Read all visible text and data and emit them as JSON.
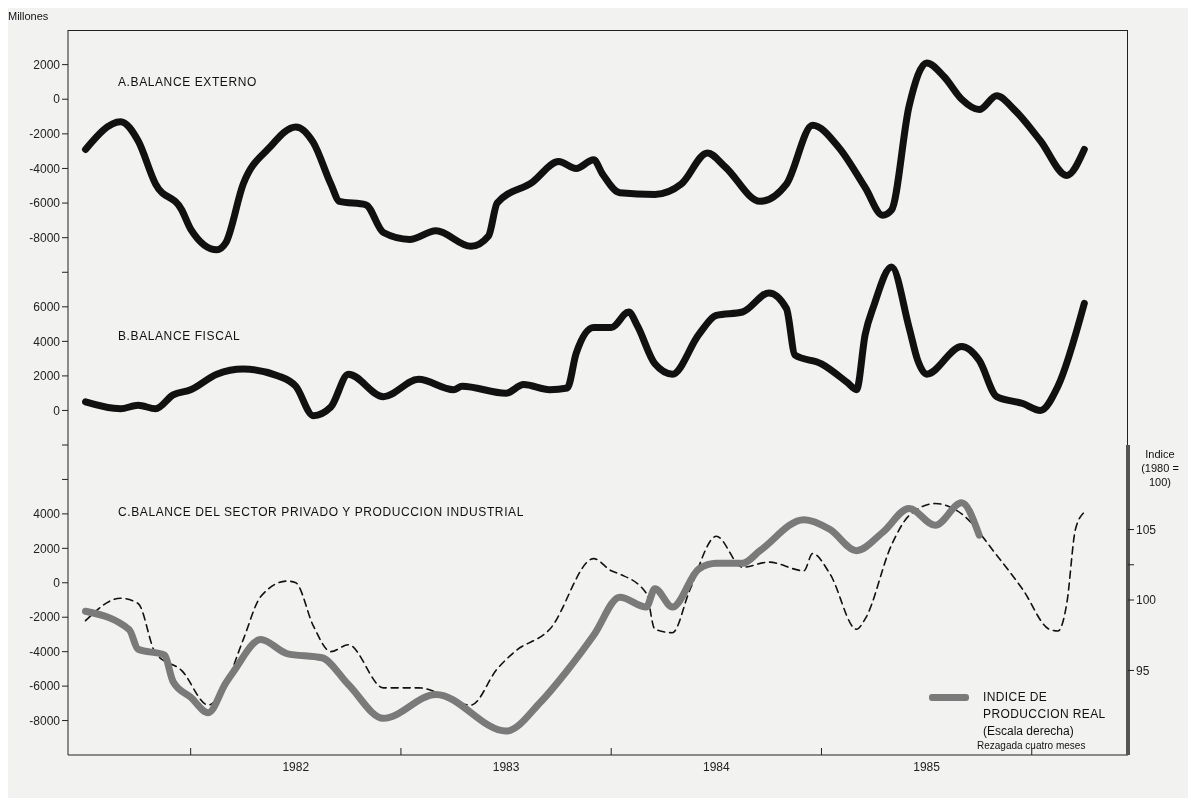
{
  "chart_data": [
    {
      "type": "line",
      "title": "A.BALANCE EXTERNO",
      "ylabel": "Millones",
      "tick_labels": "y",
      "xlim": [
        "1981-06-01",
        "1986-06-16"
      ],
      "ylim": [
        -9000,
        4000
      ],
      "yticks": [
        -8000,
        -6000,
        -4000,
        -2000,
        0,
        2000
      ],
      "series": [
        {
          "color": "#111111",
          "x": [
            "1981-07-01",
            "1981-09-01",
            "1981-10-01",
            "1981-11-01",
            "1981-12-16",
            "1982-01-01",
            "1982-02-16",
            "1982-03-01",
            "1982-04-01",
            "1982-05-16",
            "1982-07-01",
            "1982-08-01",
            "1982-09-01",
            "1982-09-16",
            "1982-11-01",
            "1982-12-01",
            "1983-01-16",
            "1983-03-01",
            "1983-05-01",
            "1983-06-01",
            "1983-06-16",
            "1983-08-16",
            "1983-10-01",
            "1983-11-01",
            "1983-12-01",
            "1983-12-16",
            "1984-01-16",
            "1984-03-16",
            "1984-05-01",
            "1984-06-16",
            "1984-07-16",
            "1984-09-16",
            "1984-11-01",
            "1984-12-16",
            "1985-02-01",
            "1985-03-16",
            "1985-04-16",
            "1985-05-01",
            "1985-06-01",
            "1985-07-01",
            "1985-08-01",
            "1985-09-01",
            "1985-10-01",
            "1985-11-01",
            "1985-12-01",
            "1986-01-16",
            "1986-03-01",
            "1986-04-01"
          ],
          "values": [
            -2900,
            -1300,
            -2400,
            -4900,
            -6400,
            -7500,
            -8700,
            -8300,
            -4900,
            -2800,
            -1600,
            -2500,
            -4900,
            -5900,
            -6100,
            -7700,
            -8100,
            -7600,
            -8500,
            -7900,
            -6000,
            -4800,
            -3600,
            -4000,
            -3500,
            -4300,
            -5400,
            -5500,
            -4900,
            -3100,
            -3900,
            -5900,
            -4900,
            -1500,
            -2800,
            -5100,
            -6700,
            -6400,
            -400,
            2100,
            1300,
            0,
            -600,
            200,
            -600,
            -2400,
            -4400,
            -2900
          ]
        }
      ]
    },
    {
      "type": "line",
      "title": "B.BALANCE FISCAL",
      "tick_labels": "y",
      "xlim": [
        "1981-06-01",
        "1986-06-16"
      ],
      "ylim": [
        -2000,
        9000
      ],
      "yticks": [
        {
          "value": -2000,
          "label": null
        },
        0,
        2000,
        4000,
        6000,
        {
          "value": 8000,
          "label": null
        }
      ],
      "series": [
        {
          "color": "#111111",
          "x": [
            "1981-07-01",
            "1981-09-01",
            "1981-10-01",
            "1981-11-01",
            "1981-12-01",
            "1982-01-01",
            "1982-02-16",
            "1982-04-01",
            "1982-06-01",
            "1982-07-01",
            "1982-08-01",
            "1982-09-01",
            "1982-10-01",
            "1982-12-01",
            "1983-02-01",
            "1983-04-01",
            "1983-04-16",
            "1983-07-01",
            "1983-08-01",
            "1983-09-16",
            "1983-10-16",
            "1983-11-01",
            "1983-12-01",
            "1984-01-01",
            "1984-02-01",
            "1984-02-16",
            "1984-03-16",
            "1984-04-16",
            "1984-06-01",
            "1984-07-01",
            "1984-08-16",
            "1984-10-01",
            "1984-11-01",
            "1984-11-16",
            "1985-01-01",
            "1985-02-16",
            "1985-03-01",
            "1985-03-16",
            "1985-04-01",
            "1985-05-01",
            "1985-06-01",
            "1985-06-16",
            "1985-07-01",
            "1985-09-01",
            "1985-10-01",
            "1985-11-01",
            "1985-12-16",
            "1986-01-16",
            "1986-02-16",
            "1986-04-01"
          ],
          "values": [
            500,
            100,
            300,
            100,
            900,
            1200,
            2100,
            2400,
            2000,
            1400,
            -300,
            200,
            2100,
            800,
            1800,
            1200,
            1400,
            1000,
            1500,
            1200,
            1300,
            3300,
            4800,
            4800,
            5700,
            4900,
            2700,
            2100,
            4400,
            5500,
            5700,
            6800,
            5900,
            3200,
            2700,
            1600,
            1200,
            4400,
            6100,
            8300,
            4800,
            2900,
            2100,
            3700,
            2900,
            800,
            400,
            0,
            1400,
            6200
          ]
        }
      ]
    },
    {
      "type": "line",
      "title": "C.BALANCE DEL SECTOR PRIVADO Y PRODUCCION INDUSTRIAL",
      "y2label": "Indice (1980 = 100)",
      "legend": "bottom right",
      "annotations": [
        "(Escala derecha)",
        "Rezagada cuatro meses"
      ],
      "xlim": [
        "1981-06-01",
        "1986-06-16"
      ],
      "xticks": [
        {
          "value": "1982-01-01",
          "label": null
        },
        {
          "value": "1982-07-01",
          "label": "1982"
        },
        {
          "value": "1983-01-01",
          "label": null
        },
        {
          "value": "1983-07-01",
          "label": "1983"
        },
        {
          "value": "1984-01-01",
          "label": null
        },
        {
          "value": "1984-07-01",
          "label": "1984"
        },
        {
          "value": "1985-01-01",
          "label": null
        },
        {
          "value": "1985-07-01",
          "label": "1985"
        },
        {
          "value": "1986-01-01",
          "label": null
        }
      ],
      "ylim": [
        -10000,
        8000
      ],
      "yticks": [
        -8000,
        -6000,
        -4000,
        -2000,
        0,
        2000,
        4000,
        {
          "value": 6000,
          "label": null
        },
        {
          "value": 8000,
          "label": null
        }
      ],
      "y2lim": [
        89,
        111
      ],
      "y2ticks": [
        95,
        100,
        {
          "value": 102.5,
          "label": null
        },
        105
      ],
      "series": [
        {
          "color": "#111111",
          "line_style": "dashed",
          "x": [
            "1981-07-01",
            "1981-09-01",
            "1981-10-01",
            "1981-11-01",
            "1981-12-16",
            "1982-02-01",
            "1982-03-01",
            "1982-04-01",
            "1982-05-01",
            "1982-06-16",
            "1982-07-01",
            "1982-08-01",
            "1982-09-01",
            "1982-10-01",
            "1982-12-01",
            "1983-02-01",
            "1983-05-01",
            "1983-06-16",
            "1983-07-16",
            "1983-09-16",
            "1983-12-01",
            "1984-01-01",
            "1984-01-16",
            "1984-03-01",
            "1984-03-16",
            "1984-04-16",
            "1984-05-16",
            "1984-07-01",
            "1984-08-16",
            "1984-10-01",
            "1984-12-01",
            "1984-12-16",
            "1985-01-16",
            "1985-03-01",
            "1985-03-16",
            "1985-05-01",
            "1985-06-01",
            "1985-07-16",
            "1985-09-01",
            "1985-11-01",
            "1985-12-16",
            "1986-02-01",
            "1986-02-16",
            "1986-03-01",
            "1986-03-16",
            "1986-04-01"
          ],
          "values": [
            -2200,
            -900,
            -1200,
            -4100,
            -5100,
            -7100,
            -5900,
            -3300,
            -800,
            100,
            0,
            -2500,
            -4000,
            -3600,
            -6100,
            -6100,
            -7100,
            -5000,
            -4000,
            -2700,
            1400,
            700,
            500,
            -600,
            -2700,
            -2900,
            -400,
            2700,
            900,
            1200,
            700,
            1700,
            500,
            -2700,
            -2100,
            2200,
            3900,
            4600,
            4000,
            1600,
            -400,
            -2700,
            -2800,
            -1200,
            3100,
            4100
          ]
        },
        {
          "name": "INDICE DE PRODUCCION REAL",
          "axis": "y2",
          "color": "#7a7a7a",
          "x": [
            "1981-07-01",
            "1981-09-16",
            "1981-10-01",
            "1981-11-16",
            "1981-12-01",
            "1982-01-01",
            "1982-02-01",
            "1982-03-01",
            "1982-03-16",
            "1982-05-01",
            "1982-06-16",
            "1982-08-16",
            "1982-10-01",
            "1982-12-01",
            "1983-03-01",
            "1983-07-01",
            "1983-09-01",
            "1983-10-16",
            "1983-12-01",
            "1984-01-16",
            "1984-03-01",
            "1984-03-16",
            "1984-04-16",
            "1984-06-01",
            "1984-07-01",
            "1984-08-16",
            "1984-09-16",
            "1984-12-01",
            "1985-01-16",
            "1985-03-01",
            "1985-04-16",
            "1985-06-01",
            "1985-07-16",
            "1985-09-01",
            "1985-10-01"
          ],
          "values": [
            99.2,
            97.9,
            96.5,
            96.1,
            94.2,
            93.1,
            92.0,
            94.1,
            95.0,
            97.2,
            96.2,
            95.9,
            94.0,
            91.6,
            93.3,
            90.7,
            92.8,
            95.0,
            97.5,
            100.2,
            99.5,
            100.8,
            99.5,
            102.2,
            102.6,
            102.6,
            103.5,
            105.7,
            105.0,
            103.5,
            104.8,
            106.5,
            105.3,
            106.9,
            104.6
          ]
        }
      ]
    }
  ]
}
